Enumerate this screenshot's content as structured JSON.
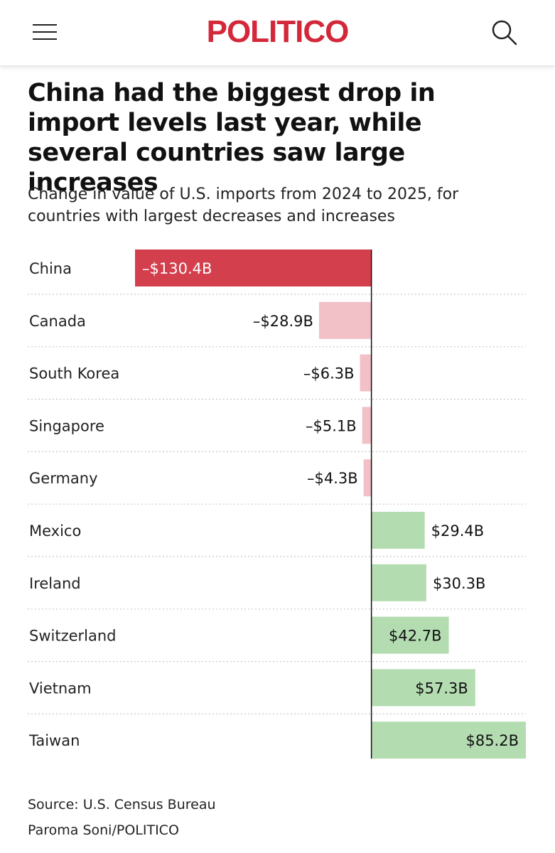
{
  "header": {
    "logo_text": "POLITICO",
    "menu_icon": "hamburger-menu-icon",
    "search_icon": "search-icon",
    "logo_color": "#D3283A"
  },
  "chart_data": {
    "type": "bar",
    "orientation": "horizontal",
    "title": "China had the biggest drop in import levels last year, while several countries saw large increases",
    "subtitle": "Change in value of U.S. imports from 2024 to 2025, for countries with largest decreases and increases",
    "categories": [
      "China",
      "Canada",
      "South Korea",
      "Singapore",
      "Germany",
      "Mexico",
      "Ireland",
      "Switzerland",
      "Vietnam",
      "Taiwan"
    ],
    "values": [
      -130.4,
      -28.9,
      -6.3,
      -5.1,
      -4.3,
      29.4,
      30.3,
      42.7,
      57.3,
      85.2
    ],
    "labels": [
      "–$130.4B",
      "–$28.9B",
      "–$6.3B",
      "–$5.1B",
      "–$4.3B",
      "$29.4B",
      "$30.3B",
      "$42.7B",
      "$57.3B",
      "$85.2B"
    ],
    "unit": "$B",
    "xlim": [
      -130.4,
      85.2
    ],
    "grid": false,
    "row_separators": "dotted",
    "zero_line": true,
    "colors": {
      "largest_decrease": "#D43F4E",
      "decrease": "#F2C0C7",
      "increase": "#B4DCB1",
      "zero_line": "#111111",
      "separator": "#C8C8C8"
    }
  },
  "footer": {
    "source": "Source: U.S. Census Bureau",
    "credit": "Paroma Soni/POLITICO"
  }
}
